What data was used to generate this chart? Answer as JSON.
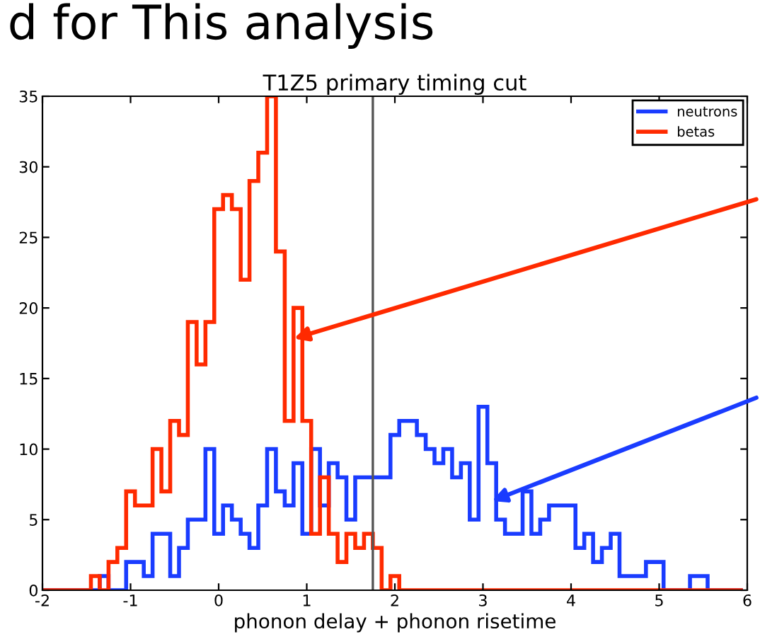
{
  "chart_data": {
    "type": "histogram",
    "title": "T1Z5 primary timing cut",
    "xlabel": "phonon delay + phonon risetime",
    "annotations": [
      "d for This analysis"
    ],
    "bins": [
      -2.05,
      -1.95,
      -1.85,
      -1.75,
      -1.65,
      -1.55,
      -1.45,
      -1.35,
      -1.25,
      -1.15,
      -1.05,
      -0.95,
      -0.85,
      -0.75,
      -0.65,
      -0.55,
      -0.45,
      -0.35,
      -0.25,
      -0.15,
      -0.05,
      0.05,
      0.15,
      0.25,
      0.35,
      0.45,
      0.55,
      0.65,
      0.75,
      0.85,
      0.95,
      1.05,
      1.15,
      1.25,
      1.35,
      1.45,
      1.55,
      1.65,
      1.75,
      1.85,
      1.95,
      2.05,
      2.15,
      2.25,
      2.35,
      2.45,
      2.55,
      2.65,
      2.75,
      2.85,
      2.95,
      3.05,
      3.15,
      3.25,
      3.35,
      3.45,
      3.55,
      3.65,
      3.75,
      3.85,
      3.95,
      4.05,
      4.15,
      4.25,
      4.35,
      4.45,
      4.55,
      4.65,
      4.75,
      4.85,
      4.95,
      5.05,
      5.15,
      5.25,
      5.35,
      5.45,
      5.55,
      5.65,
      5.75,
      5.85,
      5.95
    ],
    "series": [
      {
        "name": "neutrons",
        "color": "#1a3cff",
        "values": [
          0,
          0,
          0,
          0,
          0,
          0,
          0,
          1,
          0,
          0,
          2,
          2,
          1,
          4,
          4,
          1,
          3,
          5,
          5,
          10,
          4,
          6,
          5,
          4,
          3,
          6,
          10,
          7,
          6,
          9,
          4,
          10,
          6,
          9,
          8,
          5,
          8,
          8,
          8,
          8,
          11,
          12,
          12,
          11,
          10,
          9,
          10,
          8,
          9,
          5,
          13,
          9,
          5,
          4,
          4,
          7,
          4,
          5,
          6,
          6,
          6,
          3,
          4,
          2,
          3,
          4,
          1,
          1,
          1,
          2,
          2,
          0,
          0,
          0,
          1,
          1,
          0,
          0,
          0,
          0
        ]
      },
      {
        "name": "betas",
        "color": "#ff2a00",
        "values": [
          0,
          0,
          0,
          0,
          0,
          0,
          1,
          0,
          2,
          3,
          7,
          6,
          6,
          10,
          7,
          12,
          11,
          19,
          16,
          19,
          27,
          28,
          27,
          22,
          29,
          31,
          35,
          24,
          12,
          20,
          12,
          4,
          8,
          4,
          2,
          4,
          3,
          4,
          3,
          0,
          1,
          0,
          0,
          0,
          0,
          0,
          0,
          0,
          0,
          0,
          0,
          0,
          0,
          0,
          0,
          0,
          0,
          0,
          0,
          0,
          0,
          0,
          0,
          0,
          0,
          0,
          0,
          0,
          0,
          0,
          0,
          0,
          0,
          0,
          0,
          0,
          0,
          0,
          0,
          0
        ]
      }
    ],
    "ref_lines": [
      {
        "axis": "x",
        "value": 1.75,
        "color": "#555555"
      }
    ],
    "xlim": [
      -2,
      6
    ],
    "xticks": [
      -2,
      -1,
      0,
      1,
      2,
      3,
      4,
      5,
      6
    ],
    "ylim": [
      0,
      35
    ],
    "yticks": [
      0,
      5,
      10,
      15,
      20,
      25,
      30,
      35
    ],
    "legend": "top right",
    "grid": false
  }
}
